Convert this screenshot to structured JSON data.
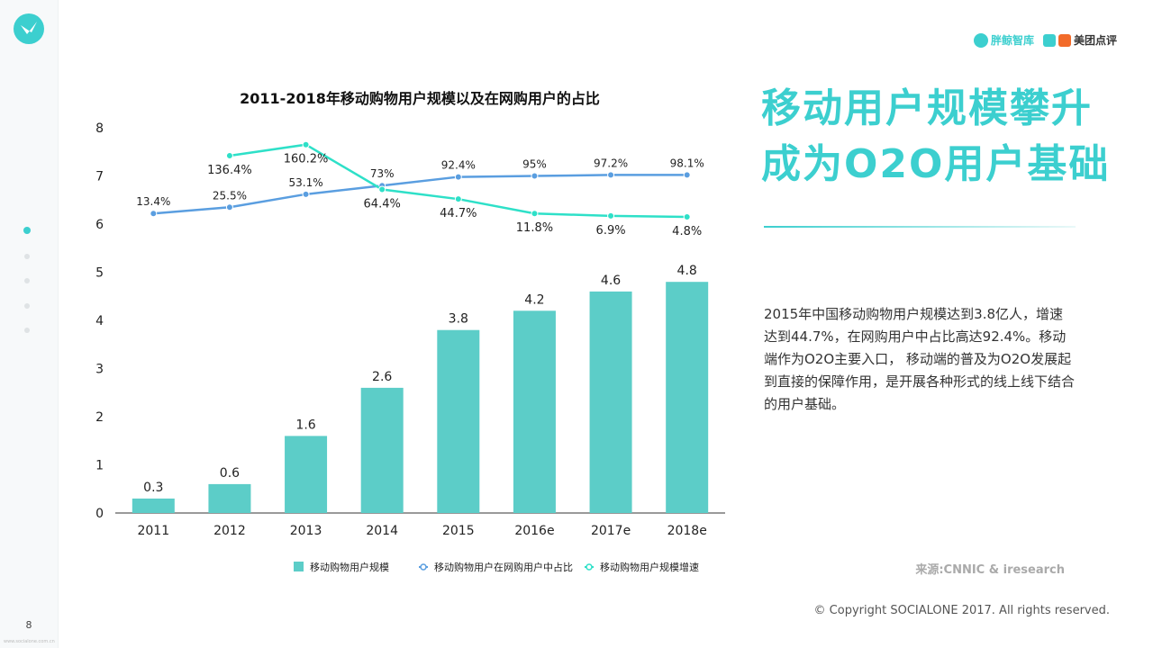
{
  "page": {
    "number": "8",
    "side_url": "www.socialone.com.cn",
    "dots": [
      true,
      false,
      false,
      false,
      false
    ]
  },
  "brands": {
    "brand1": "胖鲸智库",
    "brand2": "美团点评",
    "brand2_tag": "美团"
  },
  "headline": {
    "line1": "移动用户规模攀升",
    "line2": "成为O2O用户基础"
  },
  "body_text": "2015年中国移动购物用户规模达到3.8亿人，增速达到44.7%，在网购用户中占比高达92.4%。移动端作为O2O主要入口， 移动端的普及为O2O发展起到直接的保障作用，是开展各种形式的线上线下结合的用户基础。",
  "source": "来源:CNNIC & iresearch",
  "copyright": "© Copyright SOCIALONE 2017. All rights reserved.",
  "colors": {
    "accent": "#3ccfcf",
    "bar": "#5ccdc8",
    "share_line": "#5a9ee0",
    "growth_line": "#2ee0c8"
  },
  "chart_data": {
    "type": "bar",
    "title": "2011-2018年移动购物用户规模以及在网购用户的占比",
    "categories": [
      "2011",
      "2012",
      "2013",
      "2014",
      "2015",
      "2016e",
      "2017e",
      "2018e"
    ],
    "ylim": [
      0,
      8
    ],
    "yticks": [
      0,
      1,
      2,
      3,
      4,
      5,
      6,
      7,
      8
    ],
    "legend_position": "bottom",
    "grid": false,
    "series": [
      {
        "name": "移动购物用户规模",
        "kind": "bar",
        "values": [
          0.3,
          0.6,
          1.6,
          2.6,
          3.8,
          4.2,
          4.6,
          4.8
        ],
        "labels": [
          "0.3",
          "0.6",
          "1.6",
          "2.6",
          "3.8",
          "4.2",
          "4.6",
          "4.8"
        ]
      },
      {
        "name": "移动购物用户在网购用户中占比",
        "kind": "line",
        "values": [
          6.22,
          6.35,
          6.62,
          6.8,
          6.98,
          7.0,
          7.02,
          7.02
        ],
        "labels": [
          "13.4%",
          "25.5%",
          "53.1%",
          "73%",
          "92.4%",
          "95%",
          "97.2%",
          "98.1%"
        ]
      },
      {
        "name": "移动购物用户规模增速",
        "kind": "line",
        "values": [
          null,
          7.42,
          7.65,
          6.72,
          6.52,
          6.22,
          6.17,
          6.15
        ],
        "labels": [
          "",
          "136.4%",
          "160.2%",
          "64.4%",
          "44.7%",
          "11.8%",
          "6.9%",
          "4.8%"
        ]
      }
    ]
  }
}
